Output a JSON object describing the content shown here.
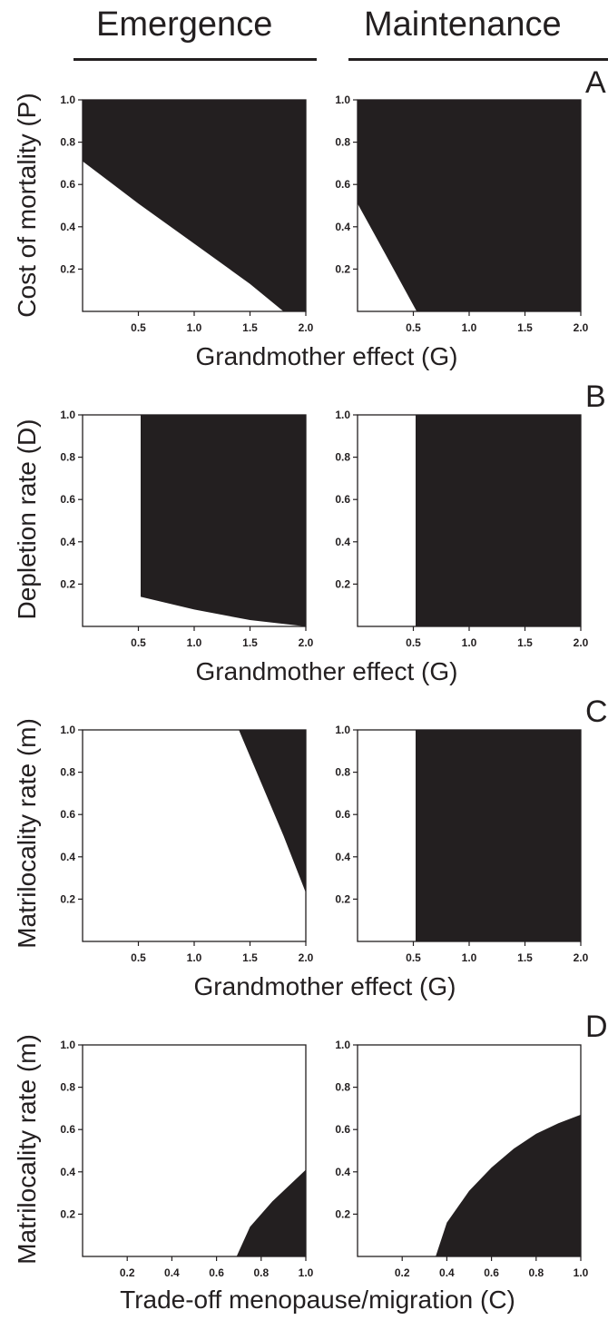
{
  "columns": {
    "left": "Emergence",
    "right": "Maintenance"
  },
  "rows": [
    {
      "letter": "A",
      "ylabel": "Cost of mortality (P)",
      "xlabel": "Grandmother effect (G)"
    },
    {
      "letter": "B",
      "ylabel": "Depletion rate (D)",
      "xlabel": "Grandmother effect (G)"
    },
    {
      "letter": "C",
      "ylabel": "Matrilocality rate (m)",
      "xlabel": "Grandmother effect (G)"
    },
    {
      "letter": "D",
      "ylabel": "Matrilocality rate (m)",
      "xlabel": "Trade-off menopause/migration (C)"
    }
  ],
  "colors": {
    "region_fill": "#231f20",
    "background": "#ffffff"
  },
  "chart_data": [
    {
      "type": "area",
      "panel": "A",
      "column": "Emergence",
      "xlim": [
        0,
        2.0
      ],
      "ylim": [
        0,
        1.0
      ],
      "xticks": [
        "0.5",
        "1.0",
        "1.5",
        "2.0"
      ],
      "yticks": [
        "0.2",
        "0.4",
        "0.6",
        "0.8",
        "1.0"
      ],
      "x": [
        0,
        0.5,
        1.0,
        1.5,
        1.8
      ],
      "boundary_y": [
        0.71,
        0.51,
        0.32,
        0.13,
        0.0
      ],
      "filled": "above"
    },
    {
      "type": "area",
      "panel": "A",
      "column": "Maintenance",
      "xlim": [
        0,
        2.0
      ],
      "ylim": [
        0,
        1.0
      ],
      "xticks": [
        "0.5",
        "1.0",
        "1.5",
        "2.0"
      ],
      "yticks": [
        "0.2",
        "0.4",
        "0.6",
        "0.8",
        "1.0"
      ],
      "x": [
        0,
        0.25,
        0.53
      ],
      "boundary_y": [
        0.51,
        0.27,
        0.0
      ],
      "filled": "above"
    },
    {
      "type": "area",
      "panel": "B",
      "column": "Emergence",
      "xlim": [
        0,
        2.0
      ],
      "ylim": [
        0,
        1.0
      ],
      "xticks": [
        "0.5",
        "1.0",
        "1.5",
        "2.0"
      ],
      "yticks": [
        "0.2",
        "0.4",
        "0.6",
        "0.8",
        "1.0"
      ],
      "x": [
        0.52,
        1.0,
        1.5,
        2.0
      ],
      "boundary_y": [
        0.14,
        0.08,
        0.03,
        0.0
      ],
      "filled": "above"
    },
    {
      "type": "area",
      "panel": "B",
      "column": "Maintenance",
      "xlim": [
        0,
        2.0
      ],
      "ylim": [
        0,
        1.0
      ],
      "xticks": [
        "0.5",
        "1.0",
        "1.5",
        "2.0"
      ],
      "yticks": [
        "0.2",
        "0.4",
        "0.6",
        "0.8",
        "1.0"
      ],
      "x": [
        0.52,
        2.0
      ],
      "boundary_y": [
        0.0,
        0.0
      ],
      "filled": "above"
    },
    {
      "type": "area",
      "panel": "C",
      "column": "Emergence",
      "xlim": [
        0,
        2.0
      ],
      "ylim": [
        0,
        1.0
      ],
      "xticks": [
        "0.5",
        "1.0",
        "1.5",
        "2.0"
      ],
      "yticks": [
        "0.2",
        "0.4",
        "0.6",
        "0.8",
        "1.0"
      ],
      "x": [
        1.4,
        1.6,
        1.8,
        2.0
      ],
      "boundary_y": [
        1.0,
        0.75,
        0.5,
        0.23
      ],
      "filled": "right"
    },
    {
      "type": "area",
      "panel": "C",
      "column": "Maintenance",
      "xlim": [
        0,
        2.0
      ],
      "ylim": [
        0,
        1.0
      ],
      "xticks": [
        "0.5",
        "1.0",
        "1.5",
        "2.0"
      ],
      "yticks": [
        "0.2",
        "0.4",
        "0.6",
        "0.8",
        "1.0"
      ],
      "x": [
        0.52,
        2.0
      ],
      "boundary_y": [
        0.0,
        0.0
      ],
      "filled": "above"
    },
    {
      "type": "area",
      "panel": "D",
      "column": "Emergence",
      "xlim": [
        0,
        1.0
      ],
      "ylim": [
        0,
        1.0
      ],
      "xticks": [
        "0.2",
        "0.4",
        "0.6",
        "0.8",
        "1.0"
      ],
      "yticks": [
        "0.2",
        "0.4",
        "0.6",
        "0.8",
        "1.0"
      ],
      "x": [
        0.69,
        0.75,
        0.8,
        0.85,
        0.9,
        0.95,
        1.0
      ],
      "boundary_y": [
        0.0,
        0.14,
        0.2,
        0.26,
        0.31,
        0.36,
        0.41
      ],
      "filled": "below"
    },
    {
      "type": "area",
      "panel": "D",
      "column": "Maintenance",
      "xlim": [
        0,
        1.0
      ],
      "ylim": [
        0,
        1.0
      ],
      "xticks": [
        "0.2",
        "0.4",
        "0.6",
        "0.8",
        "1.0"
      ],
      "yticks": [
        "0.2",
        "0.4",
        "0.6",
        "0.8",
        "1.0"
      ],
      "x": [
        0.35,
        0.4,
        0.5,
        0.6,
        0.7,
        0.8,
        0.9,
        1.0
      ],
      "boundary_y": [
        0.0,
        0.16,
        0.31,
        0.42,
        0.51,
        0.58,
        0.63,
        0.67
      ],
      "filled": "below"
    }
  ]
}
